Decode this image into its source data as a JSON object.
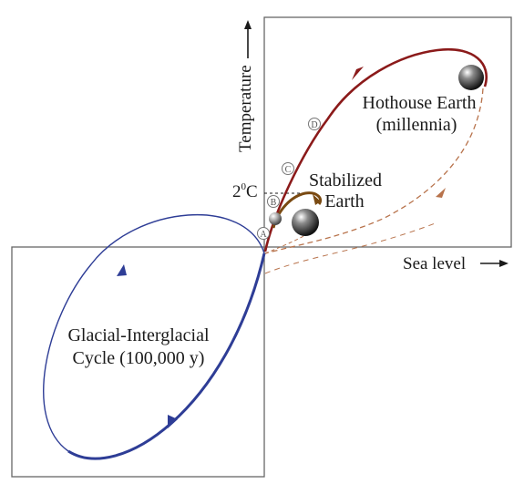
{
  "axes": {
    "y_label": "Temperature",
    "x_label": "Sea level",
    "threshold_label": "2",
    "threshold_sup": "0",
    "threshold_unit": "C"
  },
  "regions": {
    "hothouse": {
      "line1": "Hothouse Earth",
      "line2": "(millennia)"
    },
    "stabilized": {
      "line1": "Stabilized",
      "line2": "Earth"
    },
    "glacial": {
      "line1": "Glacial-Interglacial",
      "line2": "Cycle (100,000 y)"
    }
  },
  "points": [
    "A",
    "B",
    "C",
    "D"
  ],
  "colors": {
    "glacial_cycle": "#2e3d96",
    "hothouse_path": "#8b1a1a",
    "stabilized_path": "#7a4a12",
    "dashed_return": "#b8734c",
    "box_border": "#666666"
  }
}
